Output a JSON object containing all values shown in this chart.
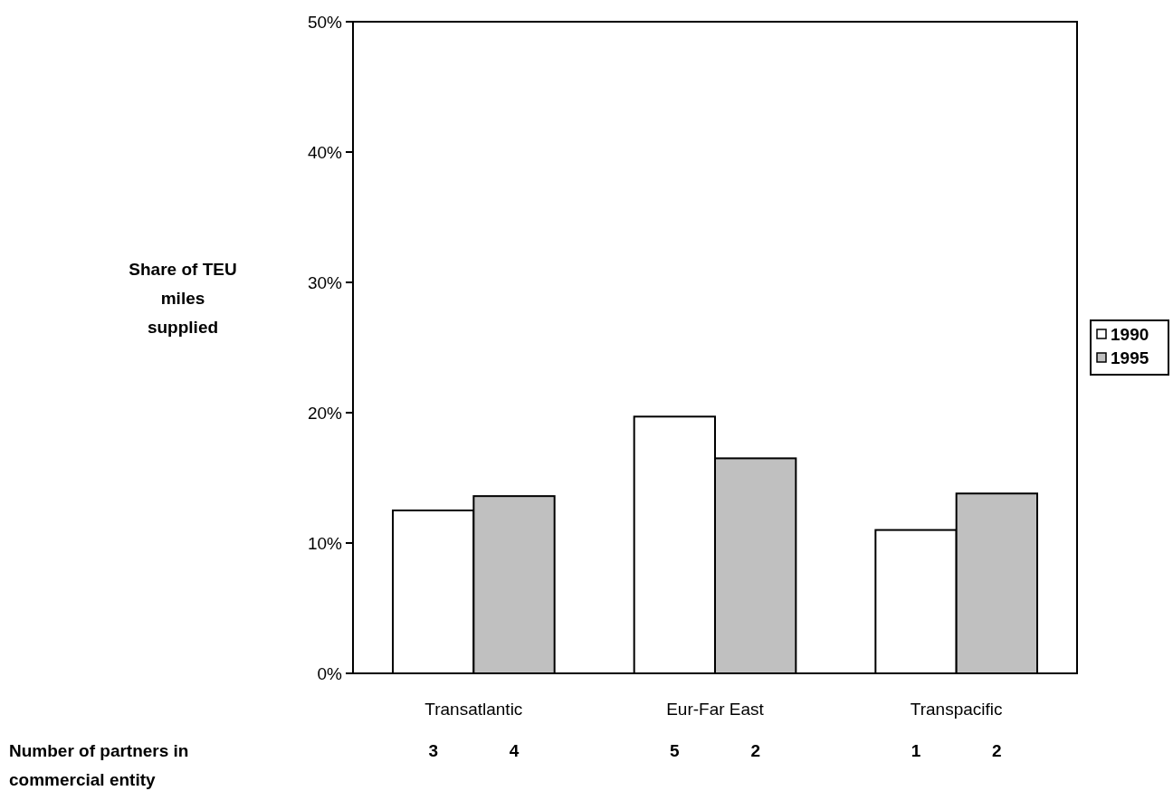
{
  "chart_data": {
    "type": "bar",
    "ylabel": "Share of TEU miles supplied",
    "categories": [
      "Transatlantic",
      "Eur-Far East",
      "Transpacific"
    ],
    "series": [
      {
        "name": "1990",
        "color": "#ffffff",
        "values": [
          12.5,
          19.7,
          11.0
        ]
      },
      {
        "name": "1995",
        "color": "#c0c0c0",
        "values": [
          13.6,
          16.5,
          13.8
        ]
      }
    ],
    "ylim": [
      0,
      50
    ],
    "yticks": [
      {
        "value": 0,
        "label": "0%"
      },
      {
        "value": 10,
        "label": "10%"
      },
      {
        "value": 20,
        "label": "20%"
      },
      {
        "value": 30,
        "label": "30%"
      },
      {
        "value": 40,
        "label": "40%"
      },
      {
        "value": 50,
        "label": "50%"
      }
    ],
    "grid": false,
    "legend": "right",
    "annotations": [
      "Number of partners in commercial entity",
      "3",
      "4",
      "5",
      "2",
      "1",
      "2"
    ]
  }
}
